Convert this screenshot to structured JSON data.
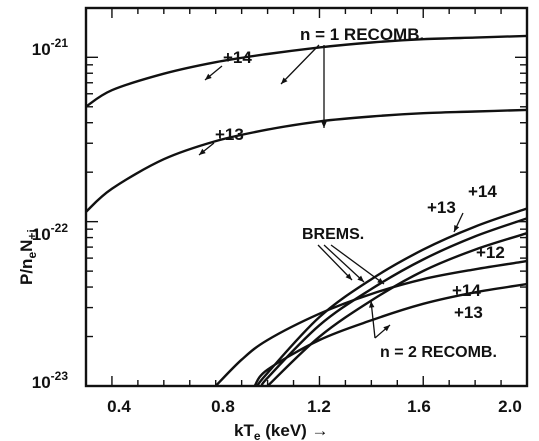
{
  "chart_data": {
    "type": "line",
    "title": "",
    "xlabel": "kT",
    "xlabel_sub": "e",
    "xlabel_unit": " (keV) →",
    "ylabel": "P/n",
    "ylabel_sub1": "e",
    "ylabel_mid": "N",
    "ylabel_sub2": "+i",
    "xlim": [
      0.3,
      2.0
    ],
    "ylim_log10": [
      -23,
      -20.7
    ],
    "x_ticks": [
      {
        "value": 0.4,
        "label": "0.4"
      },
      {
        "value": 0.8,
        "label": "0.8"
      },
      {
        "value": 1.2,
        "label": "1.2"
      },
      {
        "value": 1.6,
        "label": "1.6"
      },
      {
        "value": 2.0,
        "label": "2.0"
      }
    ],
    "y_ticks": [
      {
        "log10": -21,
        "base": "10",
        "exp": "-21"
      },
      {
        "log10": -22,
        "base": "10",
        "exp": "-22"
      },
      {
        "log10": -23,
        "base": "10",
        "exp": "-23"
      }
    ],
    "series": [
      {
        "group": "n=1 recombination",
        "charge": "+14",
        "x": [
          0.3,
          0.4,
          0.6,
          0.8,
          1.0,
          1.2,
          1.4,
          1.6,
          1.8,
          2.0
        ],
        "log10_y": [
          -21.3,
          -21.2,
          -21.1,
          -21.03,
          -20.98,
          -20.94,
          -20.91,
          -20.89,
          -20.88,
          -20.87
        ]
      },
      {
        "group": "n=1 recombination",
        "charge": "+13",
        "x": [
          0.3,
          0.4,
          0.6,
          0.8,
          1.0,
          1.2,
          1.4,
          1.6,
          1.8,
          2.0
        ],
        "log10_y": [
          -21.94,
          -21.8,
          -21.62,
          -21.51,
          -21.44,
          -21.39,
          -21.36,
          -21.34,
          -21.33,
          -21.32
        ]
      },
      {
        "group": "bremsstrahlung",
        "charge": "+14",
        "x": [
          0.96,
          1.0,
          1.2,
          1.4,
          1.6,
          1.8,
          2.0
        ],
        "log10_y": [
          -23.0,
          -22.92,
          -22.58,
          -22.35,
          -22.17,
          -22.03,
          -21.92
        ]
      },
      {
        "group": "bremsstrahlung",
        "charge": "+13",
        "x": [
          0.98,
          1.0,
          1.2,
          1.4,
          1.6,
          1.8,
          2.0
        ],
        "log10_y": [
          -23.0,
          -22.95,
          -22.63,
          -22.41,
          -22.23,
          -22.09,
          -21.98
        ]
      },
      {
        "group": "bremsstrahlung",
        "charge": "+12",
        "x": [
          1.0,
          1.2,
          1.4,
          1.6,
          1.8,
          2.0
        ],
        "log10_y": [
          -23.0,
          -22.7,
          -22.48,
          -22.3,
          -22.17,
          -22.07
        ]
      },
      {
        "group": "n=2 recombination",
        "charge": "+14",
        "x": [
          0.8,
          0.9,
          1.0,
          1.2,
          1.4,
          1.6,
          1.8,
          2.0
        ],
        "log10_y": [
          -23.0,
          -22.84,
          -22.72,
          -22.56,
          -22.44,
          -22.35,
          -22.29,
          -22.24
        ]
      },
      {
        "group": "n=2 recombination",
        "charge": "+13",
        "x": [
          0.95,
          1.0,
          1.2,
          1.4,
          1.6,
          1.8,
          2.0
        ],
        "log10_y": [
          -23.0,
          -22.9,
          -22.72,
          -22.6,
          -22.5,
          -22.43,
          -22.38
        ]
      }
    ],
    "annotations": {
      "n1_recomb": "n = 1 RECOMB.",
      "brems": "BREMS.",
      "n2_recomb": "n = 2 RECOMB.",
      "n1_plus14": "+14",
      "n1_plus13": "+13",
      "br_plus14": "+14",
      "br_plus13": "+13",
      "br_plus12": "+12",
      "n2_plus14": "+14",
      "n2_plus13": "+13"
    },
    "grid": false,
    "legend": "none"
  }
}
